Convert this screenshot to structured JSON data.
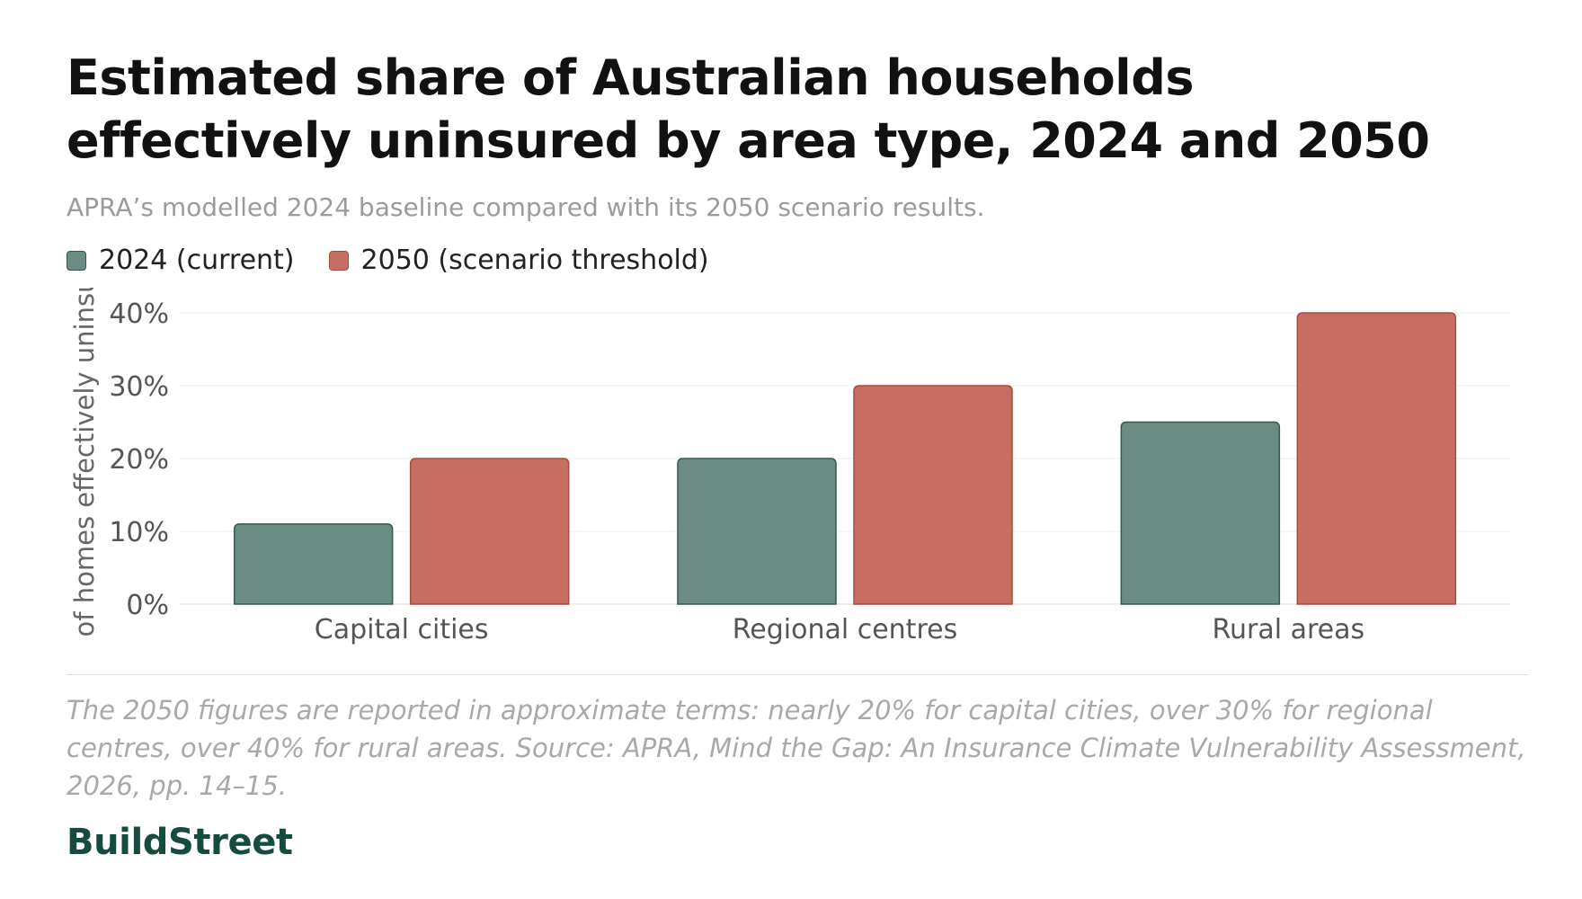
{
  "title": "Estimated share of Australian households effectively uninsured by area type, 2024 and 2050",
  "subtitle": "APRA’s modelled 2024 baseline compared with its 2050 scenario results.",
  "legend": [
    {
      "label": "2024 (current)",
      "color": "#6a8c83"
    },
    {
      "label": "2050 (scenario threshold)",
      "color": "#c76d62"
    }
  ],
  "footnote": "The 2050 figures are reported in approximate terms: nearly 20% for capital cities, over 30% for regional centres, over 40% for rural areas. Source: APRA, Mind the Gap: An Insurance Climate Vulnerability Assessment, 2026, pp. 14–15.",
  "brand": "BuildStreet",
  "chart_data": {
    "type": "bar",
    "title": "Estimated share of Australian households effectively uninsured by area type, 2024 and 2050",
    "subtitle": "APRA’s modelled 2024 baseline compared with its 2050 scenario results.",
    "categories": [
      "Capital cities",
      "Regional centres",
      "Rural areas"
    ],
    "series": [
      {
        "name": "2024 (current)",
        "values": [
          11,
          20,
          25
        ],
        "color": "#6a8c83",
        "stroke": "#355a51"
      },
      {
        "name": "2050 (scenario threshold)",
        "values": [
          20,
          30,
          40
        ],
        "color": "#c76d62",
        "stroke": "#a84a42"
      }
    ],
    "xlabel": "",
    "ylabel": "of homes effectively uninsu",
    "ylim": [
      0,
      40
    ],
    "yticks": [
      0,
      10,
      20,
      30,
      40
    ],
    "ytick_labels": [
      "0%",
      "10%",
      "20%",
      "30%",
      "40%"
    ],
    "grid": true,
    "legend_position": "top-left"
  }
}
